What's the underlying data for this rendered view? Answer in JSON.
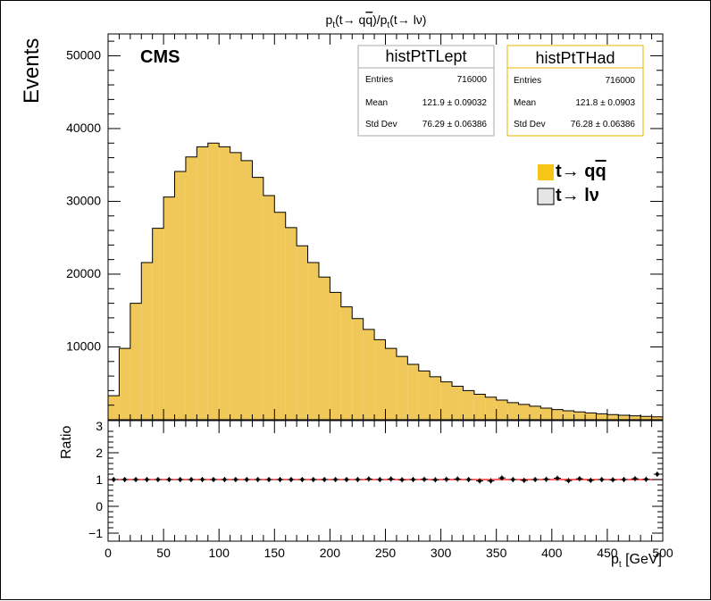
{
  "chart_data": [
    {
      "type": "histogram",
      "title": "p_t(t→ qq̅)/p_t(t→ lν)",
      "title_parts": {
        "p1": "p",
        "s1": "t",
        "m1": "(t→ q",
        "qbar": "q",
        "m2": ")/p",
        "s2": "t",
        "m3": "(t→ lν)"
      },
      "ylabel": "Events",
      "label": "CMS",
      "x_binning": {
        "min": 0,
        "max": 500,
        "nbins": 50
      },
      "ylim": [
        0,
        53000
      ],
      "y_ticks": [
        "10000",
        "20000",
        "30000",
        "40000",
        "50000"
      ],
      "y_tick_values": [
        10000,
        20000,
        30000,
        40000,
        50000
      ],
      "series": [
        {
          "name": "t→ qq̅",
          "color": "#f0c85a",
          "values": [
            3300,
            9800,
            16000,
            21600,
            26300,
            30600,
            34100,
            36100,
            37500,
            38000,
            37500,
            36700,
            35600,
            33300,
            30800,
            28500,
            26400,
            23900,
            21600,
            19600,
            17500,
            15500,
            13900,
            12400,
            11000,
            9800,
            8700,
            7600,
            6700,
            5900,
            5200,
            4600,
            4000,
            3500,
            3100,
            2700,
            2350,
            2100,
            1850,
            1600,
            1400,
            1230,
            1070,
            940,
            810,
            700,
            610,
            530,
            460,
            400
          ]
        }
      ],
      "legend": {
        "entries": [
          {
            "label_main": "t→ q",
            "label_qbar": "q",
            "color": "#f5c518"
          },
          {
            "label_main": "t→ lν",
            "label_qbar": "",
            "color": "#e5e5e5"
          }
        ]
      },
      "stats_boxes": [
        {
          "name": "histPtTLept",
          "entries_label": "Entries",
          "entries": "716000",
          "mean_label": "Mean",
          "mean": "121.9 ± 0.09032",
          "std_label": "Std Dev",
          "std": "76.29 ± 0.06386",
          "border_color": "#aaaaaa"
        },
        {
          "name": "histPtTHad",
          "entries_label": "Entries",
          "entries": "716000",
          "mean_label": "Mean",
          "mean": "121.8 ± 0.0903",
          "std_label": "Std Dev",
          "std": "76.28 ± 0.06386",
          "border_color": "#e8b400"
        }
      ]
    },
    {
      "type": "scatter",
      "ylabel": "Ratio",
      "xlabel": "p_t [GeV]",
      "xlabel_parts": {
        "p": "p",
        "sub": "t",
        "rest": " [GeV]"
      },
      "xlim": [
        0,
        500
      ],
      "ylim": [
        -1.3,
        3.2
      ],
      "x_ticks": [
        "0",
        "50",
        "100",
        "150",
        "200",
        "250",
        "300",
        "350",
        "400",
        "450",
        "500"
      ],
      "x_tick_values": [
        0,
        50,
        100,
        150,
        200,
        250,
        300,
        350,
        400,
        450,
        500
      ],
      "y_ticks": [
        "−1",
        "0",
        "1",
        "2",
        "3"
      ],
      "y_tick_values": [
        -1,
        0,
        1,
        2,
        3
      ],
      "reference_line": {
        "y": 1,
        "color": "#ff0000"
      },
      "series": [
        {
          "x": [
            5,
            15,
            25,
            35,
            45,
            55,
            65,
            75,
            85,
            95,
            105,
            115,
            125,
            135,
            145,
            155,
            165,
            175,
            185,
            195,
            205,
            215,
            225,
            235,
            245,
            255,
            265,
            275,
            285,
            295,
            305,
            315,
            325,
            335,
            345,
            355,
            365,
            375,
            385,
            395,
            405,
            415,
            425,
            435,
            445,
            455,
            465,
            475,
            485,
            495
          ],
          "values": [
            1.0,
            1.0,
            1.0,
            1.0,
            1.0,
            1.0,
            1.0,
            1.0,
            1.0,
            1.0,
            1.0,
            1.0,
            1.0,
            1.0,
            1.0,
            1.0,
            1.0,
            1.0,
            1.0,
            1.0,
            1.0,
            1.0,
            1.0,
            1.02,
            1.0,
            1.02,
            0.99,
            1.0,
            1.01,
            0.99,
            1.01,
            1.02,
            1.0,
            0.95,
            0.95,
            1.06,
            1.0,
            0.97,
            1.0,
            1.01,
            1.05,
            0.96,
            1.03,
            0.97,
            1.0,
            0.99,
            1.0,
            1.03,
            1.01,
            1.2
          ]
        }
      ]
    }
  ]
}
